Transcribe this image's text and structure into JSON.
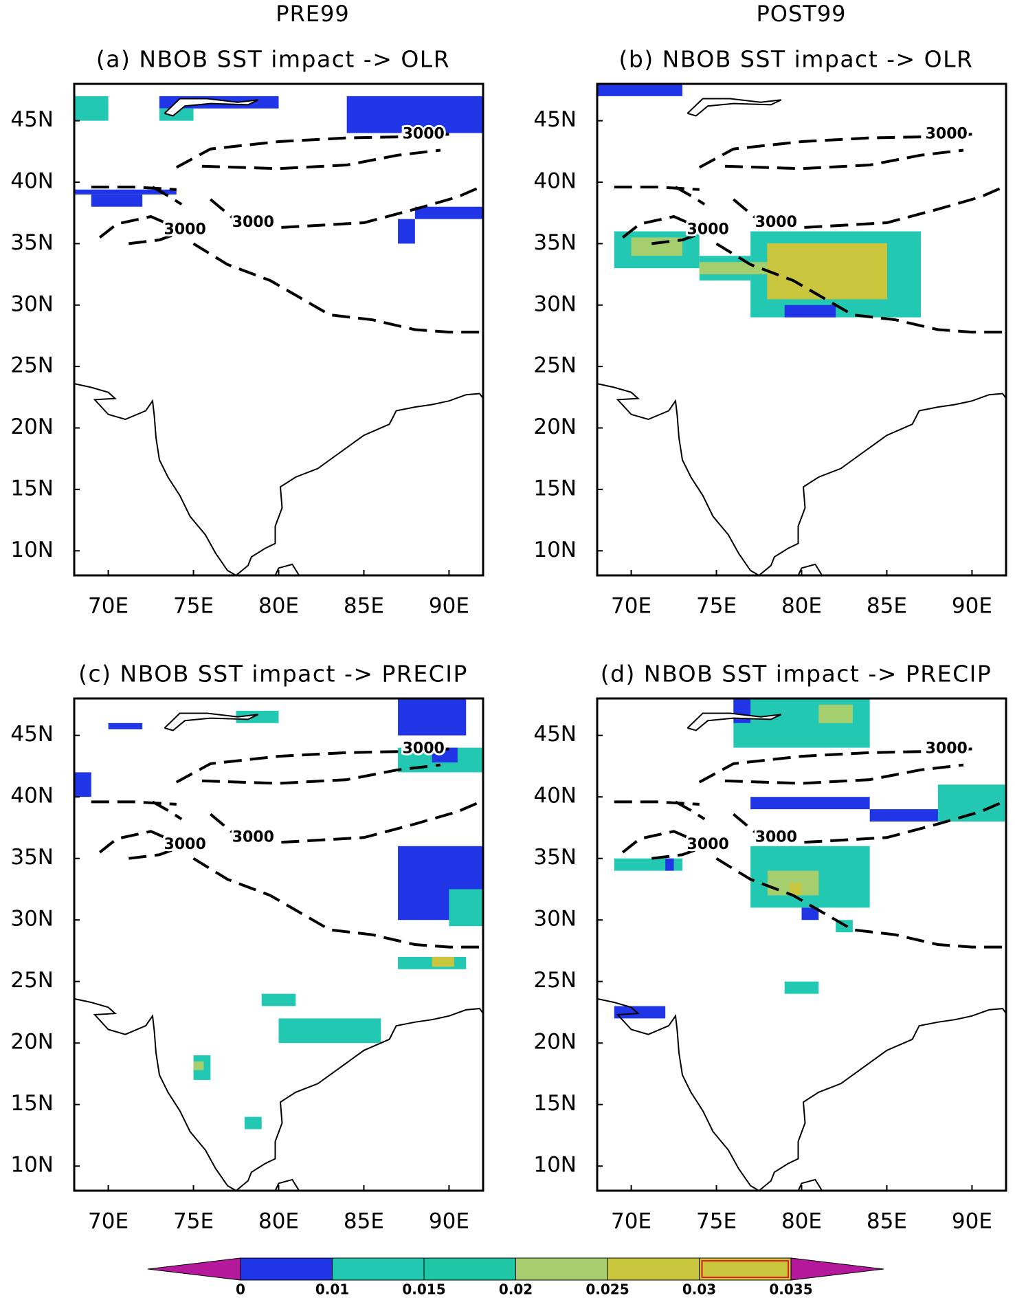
{
  "columns": [
    "PRE99",
    "POST99"
  ],
  "panels": [
    {
      "title": "(a) NBOB SST impact -> OLR",
      "contour_labels": [
        "3000",
        "3000",
        "3000"
      ]
    },
    {
      "title": "(b) NBOB SST impact -> OLR",
      "contour_labels": [
        "3000",
        "3000",
        "3000"
      ]
    },
    {
      "title": "(c) NBOB SST impact -> PRECIP",
      "contour_labels": [
        "3000",
        "3000",
        "3000"
      ]
    },
    {
      "title": "(d) NBOB SST impact -> PRECIP",
      "contour_labels": [
        "3000",
        "3000",
        "3000"
      ]
    }
  ],
  "xlim": [
    68,
    92
  ],
  "ylim": [
    8,
    48
  ],
  "xticks": [
    {
      "value": 70,
      "label": "70E"
    },
    {
      "value": 75,
      "label": "75E"
    },
    {
      "value": 80,
      "label": "80E"
    },
    {
      "value": 85,
      "label": "85E"
    },
    {
      "value": 90,
      "label": "90E"
    }
  ],
  "yticks": [
    {
      "value": 10,
      "label": "10N"
    },
    {
      "value": 15,
      "label": "15N"
    },
    {
      "value": 20,
      "label": "20N"
    },
    {
      "value": 25,
      "label": "25N"
    },
    {
      "value": 30,
      "label": "30N"
    },
    {
      "value": 35,
      "label": "35N"
    },
    {
      "value": 40,
      "label": "40N"
    },
    {
      "value": 45,
      "label": "45N"
    }
  ],
  "colorbar": {
    "levels": [
      0,
      0.01,
      0.015,
      0.02,
      0.025,
      0.03,
      0.035
    ],
    "colors": [
      "#2036e6",
      "#23c8b2",
      "#1fc6a6",
      "#a5cf6e",
      "#c9c63d",
      "#c9c63d"
    ],
    "extend_color": "#b5199b"
  }
}
